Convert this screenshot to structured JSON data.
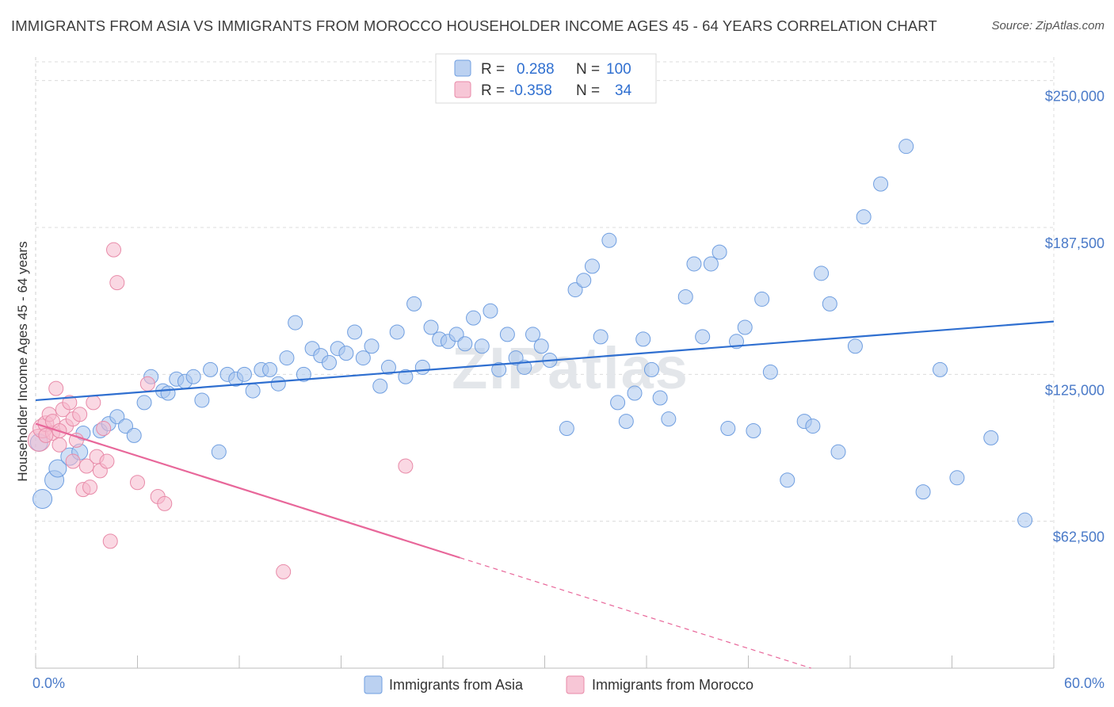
{
  "title": "IMMIGRANTS FROM ASIA VS IMMIGRANTS FROM MOROCCO HOUSEHOLDER INCOME AGES 45 - 64 YEARS CORRELATION CHART",
  "source": "Source: ZipAtlas.com",
  "watermark": "ZIPatlas",
  "chart_data": {
    "type": "scatter",
    "ylabel": "Householder Income Ages 45 - 64 years",
    "xlim": [
      0,
      60
    ],
    "ylim": [
      0,
      260000
    ],
    "x_tick_labels": [
      "0.0%",
      "60.0%"
    ],
    "y_ticks": [
      {
        "value": 62500,
        "label": "$62,500"
      },
      {
        "value": 125000,
        "label": "$125,000"
      },
      {
        "value": 187500,
        "label": "$187,500"
      },
      {
        "value": 250000,
        "label": "$250,000"
      }
    ],
    "grid": true,
    "legend": {
      "placement": "top-center",
      "entries": [
        {
          "r_label": "R =",
          "r_value": "0.288",
          "n_label": "N =",
          "n_value": "100",
          "color": "#aac6ee"
        },
        {
          "r_label": "R =",
          "r_value": "-0.358",
          "n_label": "N =",
          "n_value": "34",
          "color": "#f5b8cc"
        }
      ]
    },
    "series": [
      {
        "name": "Immigrants from Asia",
        "color": "#aac6ee",
        "stroke": "#6f9ee0",
        "trend_color": "#2f6fd0",
        "trend": {
          "x": [
            0,
            60
          ],
          "y": [
            114000,
            147500
          ]
        },
        "points": [
          [
            0.4,
            72000,
            12
          ],
          [
            1.1,
            80000,
            12
          ],
          [
            1.3,
            85000,
            11
          ],
          [
            2.0,
            90000,
            11
          ],
          [
            2.6,
            92000,
            10
          ],
          [
            2.8,
            100000,
            9
          ],
          [
            3.8,
            101000,
            9
          ],
          [
            4.3,
            104000,
            9
          ],
          [
            4.8,
            107000,
            9
          ],
          [
            5.3,
            103000,
            9
          ],
          [
            5.8,
            99000,
            9
          ],
          [
            6.4,
            113000,
            9
          ],
          [
            6.8,
            124000,
            9
          ],
          [
            7.5,
            118000,
            9
          ],
          [
            7.8,
            117000,
            9
          ],
          [
            8.3,
            123000,
            9
          ],
          [
            8.8,
            122000,
            9
          ],
          [
            9.3,
            124000,
            9
          ],
          [
            9.8,
            114000,
            9
          ],
          [
            10.3,
            127000,
            9
          ],
          [
            10.8,
            92000,
            9
          ],
          [
            11.3,
            125000,
            9
          ],
          [
            11.8,
            123000,
            9
          ],
          [
            12.3,
            125000,
            9
          ],
          [
            12.8,
            118000,
            9
          ],
          [
            13.3,
            127000,
            9
          ],
          [
            13.8,
            127000,
            9
          ],
          [
            14.3,
            121000,
            9
          ],
          [
            14.8,
            132000,
            9
          ],
          [
            15.3,
            147000,
            9
          ],
          [
            15.8,
            125000,
            9
          ],
          [
            16.3,
            136000,
            9
          ],
          [
            16.8,
            133000,
            9
          ],
          [
            17.3,
            130000,
            9
          ],
          [
            17.8,
            136000,
            9
          ],
          [
            18.3,
            134000,
            9
          ],
          [
            18.8,
            143000,
            9
          ],
          [
            19.3,
            132000,
            9
          ],
          [
            19.8,
            137000,
            9
          ],
          [
            20.3,
            120000,
            9
          ],
          [
            20.8,
            128000,
            9
          ],
          [
            21.3,
            143000,
            9
          ],
          [
            21.8,
            124000,
            9
          ],
          [
            22.3,
            155000,
            9
          ],
          [
            22.8,
            128000,
            9
          ],
          [
            23.3,
            145000,
            9
          ],
          [
            23.8,
            140000,
            9
          ],
          [
            24.3,
            139000,
            9
          ],
          [
            24.8,
            142000,
            9
          ],
          [
            25.3,
            138000,
            9
          ],
          [
            25.8,
            149000,
            9
          ],
          [
            26.3,
            137000,
            9
          ],
          [
            26.8,
            152000,
            9
          ],
          [
            27.3,
            127000,
            9
          ],
          [
            27.8,
            142000,
            9
          ],
          [
            28.3,
            132000,
            9
          ],
          [
            28.8,
            128000,
            9
          ],
          [
            29.3,
            142000,
            9
          ],
          [
            29.8,
            137000,
            9
          ],
          [
            30.3,
            131000,
            9
          ],
          [
            31.3,
            102000,
            9
          ],
          [
            31.8,
            161000,
            9
          ],
          [
            32.3,
            165000,
            9
          ],
          [
            32.8,
            171000,
            9
          ],
          [
            33.3,
            141000,
            9
          ],
          [
            33.8,
            182000,
            9
          ],
          [
            34.3,
            113000,
            9
          ],
          [
            34.8,
            105000,
            9
          ],
          [
            35.3,
            117000,
            9
          ],
          [
            35.8,
            140000,
            9
          ],
          [
            36.3,
            127000,
            9
          ],
          [
            36.8,
            115000,
            9
          ],
          [
            37.3,
            106000,
            9
          ],
          [
            38.3,
            158000,
            9
          ],
          [
            38.8,
            172000,
            9
          ],
          [
            39.3,
            141000,
            9
          ],
          [
            39.8,
            172000,
            9
          ],
          [
            40.3,
            177000,
            9
          ],
          [
            40.8,
            102000,
            9
          ],
          [
            41.3,
            139000,
            9
          ],
          [
            41.8,
            145000,
            9
          ],
          [
            42.3,
            101000,
            9
          ],
          [
            42.8,
            157000,
            9
          ],
          [
            43.3,
            126000,
            9
          ],
          [
            44.3,
            80000,
            9
          ],
          [
            45.3,
            105000,
            9
          ],
          [
            45.8,
            103000,
            9
          ],
          [
            46.3,
            168000,
            9
          ],
          [
            46.8,
            155000,
            9
          ],
          [
            47.3,
            92000,
            9
          ],
          [
            48.3,
            137000,
            9
          ],
          [
            48.8,
            192000,
            9
          ],
          [
            49.8,
            206000,
            9
          ],
          [
            51.3,
            222000,
            9
          ],
          [
            52.3,
            75000,
            9
          ],
          [
            53.3,
            127000,
            9
          ],
          [
            54.3,
            81000,
            9
          ],
          [
            56.3,
            98000,
            9
          ],
          [
            58.3,
            63000,
            9
          ],
          [
            0.2,
            96000,
            11
          ]
        ]
      },
      {
        "name": "Immigrants from Morocco",
        "color": "#f5b8cc",
        "stroke": "#e88aa8",
        "trend_color": "#e8679a",
        "trend": {
          "x": [
            0,
            25
          ],
          "y": [
            104000,
            47000
          ]
        },
        "trend_dashed": {
          "x": [
            25,
            45.7
          ],
          "y": [
            47000,
            0
          ]
        },
        "points": [
          [
            0.2,
            97000,
            14
          ],
          [
            0.4,
            102000,
            12
          ],
          [
            0.6,
            104000,
            10
          ],
          [
            0.8,
            108000,
            9
          ],
          [
            1.0,
            100000,
            9
          ],
          [
            1.2,
            119000,
            9
          ],
          [
            1.4,
            95000,
            9
          ],
          [
            1.6,
            110000,
            9
          ],
          [
            1.8,
            103000,
            9
          ],
          [
            2.0,
            113000,
            9
          ],
          [
            2.2,
            106000,
            9
          ],
          [
            2.4,
            97000,
            9
          ],
          [
            2.6,
            108000,
            9
          ],
          [
            2.8,
            76000,
            9
          ],
          [
            3.0,
            86000,
            9
          ],
          [
            3.2,
            77000,
            9
          ],
          [
            3.4,
            113000,
            9
          ],
          [
            3.6,
            90000,
            9
          ],
          [
            3.8,
            84000,
            9
          ],
          [
            4.0,
            102000,
            9
          ],
          [
            4.2,
            88000,
            9
          ],
          [
            4.4,
            54000,
            9
          ],
          [
            4.6,
            178000,
            9
          ],
          [
            4.8,
            164000,
            9
          ],
          [
            6.0,
            79000,
            9
          ],
          [
            6.6,
            121000,
            9
          ],
          [
            7.2,
            73000,
            9
          ],
          [
            7.6,
            70000,
            9
          ],
          [
            14.6,
            41000,
            9
          ],
          [
            21.8,
            86000,
            9
          ],
          [
            1.0,
            105000,
            9
          ],
          [
            1.4,
            101000,
            9
          ],
          [
            2.2,
            88000,
            9
          ],
          [
            0.6,
            99000,
            9
          ]
        ]
      }
    ]
  }
}
